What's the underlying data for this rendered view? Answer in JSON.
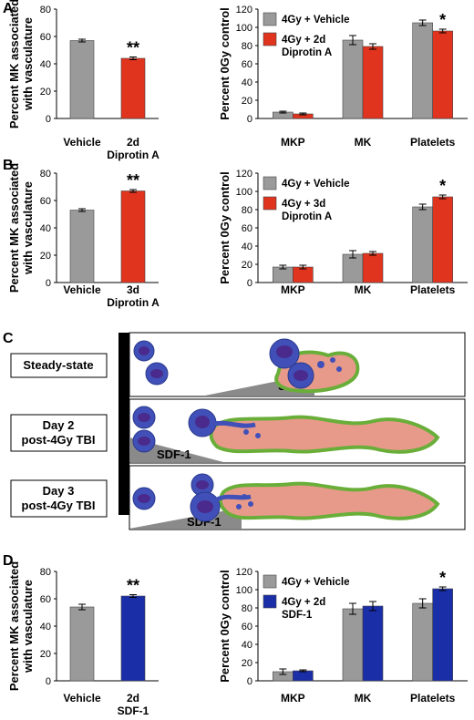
{
  "panels": {
    "A": "A",
    "B": "B",
    "C": "C",
    "D": "D"
  },
  "colors": {
    "vehicle": "#9a9a9a",
    "diprotin": "#e1341e",
    "sdf1": "#1a2ea8",
    "cell_fill": "#4050b8",
    "cell_nucleus": "#4a2a8c",
    "vessel_fill": "#e89a8a",
    "vessel_border": "#6aae3a",
    "gradient": "#8a8a8a"
  },
  "diagram": {
    "states": [
      "Steady-state",
      "Day 2\npost-4Gy TBI",
      "Day 3\npost-4Gy TBI"
    ],
    "gradient_label": "SDF-1"
  },
  "chart_data": [
    {
      "id": "A-left",
      "type": "bar",
      "ylabel": "Percent MK associated\nwith vasculature",
      "categories": [
        "Vehicle",
        "2d\nDiprotin A"
      ],
      "values": [
        57,
        44
      ],
      "errors": [
        1,
        1
      ],
      "colors": [
        "#9a9a9a",
        "#e1341e"
      ],
      "ylim": [
        0,
        80
      ],
      "yticks": [
        0,
        20,
        40,
        60,
        80
      ],
      "significance": [
        "",
        "**"
      ]
    },
    {
      "id": "A-right",
      "type": "bar",
      "ylabel": "Percent 0Gy control",
      "categories": [
        "MKP",
        "MK",
        "Platelets"
      ],
      "series": [
        {
          "name": "4Gy + Vehicle",
          "values": [
            7,
            86,
            105
          ],
          "errors": [
            1,
            5,
            3
          ],
          "color": "#9a9a9a"
        },
        {
          "name": "4Gy + 2d\nDiprotin A",
          "values": [
            5,
            79,
            96
          ],
          "errors": [
            1,
            3,
            2
          ],
          "color": "#e1341e"
        }
      ],
      "ylim": [
        0,
        120
      ],
      "yticks": [
        0,
        20,
        40,
        60,
        80,
        100,
        120
      ],
      "significance": [
        "",
        "",
        "*"
      ],
      "legend": "top-left"
    },
    {
      "id": "B-left",
      "type": "bar",
      "ylabel": "Percent MK associated\nwith vasculature",
      "categories": [
        "Vehicle",
        "3d\nDiprotin A"
      ],
      "values": [
        53,
        67
      ],
      "errors": [
        1,
        1
      ],
      "colors": [
        "#9a9a9a",
        "#e1341e"
      ],
      "ylim": [
        0,
        80
      ],
      "yticks": [
        0,
        20,
        40,
        60,
        80
      ],
      "significance": [
        "",
        "**"
      ]
    },
    {
      "id": "B-right",
      "type": "bar",
      "ylabel": "Percent 0Gy control",
      "categories": [
        "MKP",
        "MK",
        "Platelets"
      ],
      "series": [
        {
          "name": "4Gy + Vehicle",
          "values": [
            17,
            31,
            83
          ],
          "errors": [
            2,
            4,
            3
          ],
          "color": "#9a9a9a"
        },
        {
          "name": "4Gy + 3d\nDiprotin A",
          "values": [
            17,
            32,
            94
          ],
          "errors": [
            2,
            2,
            2
          ],
          "color": "#e1341e"
        }
      ],
      "ylim": [
        0,
        120
      ],
      "yticks": [
        0,
        20,
        40,
        60,
        80,
        100,
        120
      ],
      "significance": [
        "",
        "",
        "*"
      ],
      "legend": "top-left"
    },
    {
      "id": "D-left",
      "type": "bar",
      "ylabel": "Percent MK associated\nwith vasculature",
      "categories": [
        "Vehicle",
        "2d\nSDF-1"
      ],
      "values": [
        54,
        62
      ],
      "errors": [
        2,
        1
      ],
      "colors": [
        "#9a9a9a",
        "#1a2ea8"
      ],
      "ylim": [
        0,
        80
      ],
      "yticks": [
        0,
        20,
        40,
        60,
        80
      ],
      "significance": [
        "",
        "**"
      ]
    },
    {
      "id": "D-right",
      "type": "bar",
      "ylabel": "Percent 0Gy control",
      "categories": [
        "MKP",
        "MK",
        "Platelets"
      ],
      "series": [
        {
          "name": "4Gy + Vehicle",
          "values": [
            10,
            79,
            85
          ],
          "errors": [
            3,
            6,
            5
          ],
          "color": "#9a9a9a"
        },
        {
          "name": "4Gy + 2d\nSDF-1",
          "values": [
            11,
            82,
            101
          ],
          "errors": [
            1,
            5,
            2
          ],
          "color": "#1a2ea8"
        }
      ],
      "ylim": [
        0,
        120
      ],
      "yticks": [
        0,
        20,
        40,
        60,
        80,
        100,
        120
      ],
      "significance": [
        "",
        "",
        "*"
      ],
      "legend": "top-left"
    }
  ]
}
